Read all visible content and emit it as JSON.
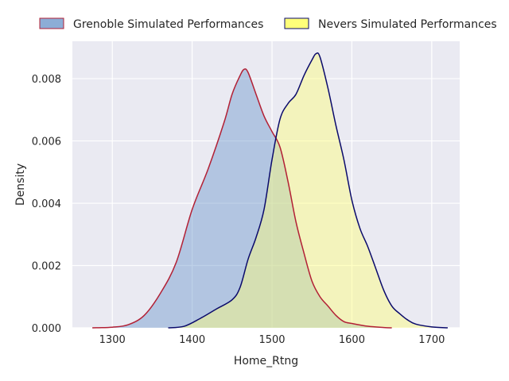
{
  "chart_data": {
    "type": "area",
    "chart_kind": "kde",
    "title": "",
    "xlabel": "Home_Rtng",
    "ylabel": "Density",
    "xlim": [
      1250,
      1735
    ],
    "ylim": [
      0,
      0.0092
    ],
    "xticks": [
      1300,
      1400,
      1500,
      1600,
      1700
    ],
    "xtick_labels": [
      "1300",
      "1400",
      "1500",
      "1600",
      "1700"
    ],
    "yticks": [
      0,
      0.002,
      0.004,
      0.006,
      0.008
    ],
    "ytick_labels": [
      "0.000",
      "0.002",
      "0.004",
      "0.006",
      "0.008"
    ],
    "grid": true,
    "legend_placement": "top-center",
    "plot_background": "#eaeaf2",
    "series": [
      {
        "name": "Grenoble Simulated Performances",
        "fill_color": "#6f99cc",
        "line_color": "#b22035",
        "points": [
          [
            1275,
            0
          ],
          [
            1300,
            2e-05
          ],
          [
            1320,
            0.0001
          ],
          [
            1340,
            0.0004
          ],
          [
            1360,
            0.0011
          ],
          [
            1380,
            0.0021
          ],
          [
            1400,
            0.0038
          ],
          [
            1420,
            0.0051
          ],
          [
            1440,
            0.0066
          ],
          [
            1450,
            0.0075
          ],
          [
            1460,
            0.0081
          ],
          [
            1465,
            0.0083
          ],
          [
            1470,
            0.0082
          ],
          [
            1480,
            0.0075
          ],
          [
            1490,
            0.0068
          ],
          [
            1500,
            0.0063
          ],
          [
            1510,
            0.0058
          ],
          [
            1520,
            0.0047
          ],
          [
            1530,
            0.0034
          ],
          [
            1540,
            0.0024
          ],
          [
            1550,
            0.0015
          ],
          [
            1560,
            0.001
          ],
          [
            1570,
            0.0007
          ],
          [
            1580,
            0.0004
          ],
          [
            1590,
            0.0002
          ],
          [
            1600,
            0.00014
          ],
          [
            1620,
            5e-05
          ],
          [
            1640,
            1e-05
          ],
          [
            1650,
            0
          ]
        ]
      },
      {
        "name": "Nevers Simulated Performances",
        "fill_color": "#ffff7a",
        "line_color": "#0a0a6b",
        "points": [
          [
            1370,
            0
          ],
          [
            1390,
            5e-05
          ],
          [
            1410,
            0.0003
          ],
          [
            1430,
            0.0006
          ],
          [
            1450,
            0.0009
          ],
          [
            1460,
            0.0013
          ],
          [
            1470,
            0.0022
          ],
          [
            1480,
            0.0029
          ],
          [
            1490,
            0.0038
          ],
          [
            1500,
            0.0054
          ],
          [
            1510,
            0.0067
          ],
          [
            1520,
            0.0072
          ],
          [
            1530,
            0.0075
          ],
          [
            1540,
            0.0081
          ],
          [
            1550,
            0.0086
          ],
          [
            1555,
            0.0088
          ],
          [
            1560,
            0.0087
          ],
          [
            1570,
            0.0077
          ],
          [
            1580,
            0.0065
          ],
          [
            1590,
            0.0054
          ],
          [
            1600,
            0.0041
          ],
          [
            1610,
            0.0032
          ],
          [
            1620,
            0.0026
          ],
          [
            1630,
            0.0019
          ],
          [
            1640,
            0.0012
          ],
          [
            1650,
            0.0007
          ],
          [
            1660,
            0.00045
          ],
          [
            1670,
            0.00025
          ],
          [
            1680,
            0.00012
          ],
          [
            1700,
            3e-05
          ],
          [
            1720,
            0
          ]
        ]
      }
    ]
  }
}
